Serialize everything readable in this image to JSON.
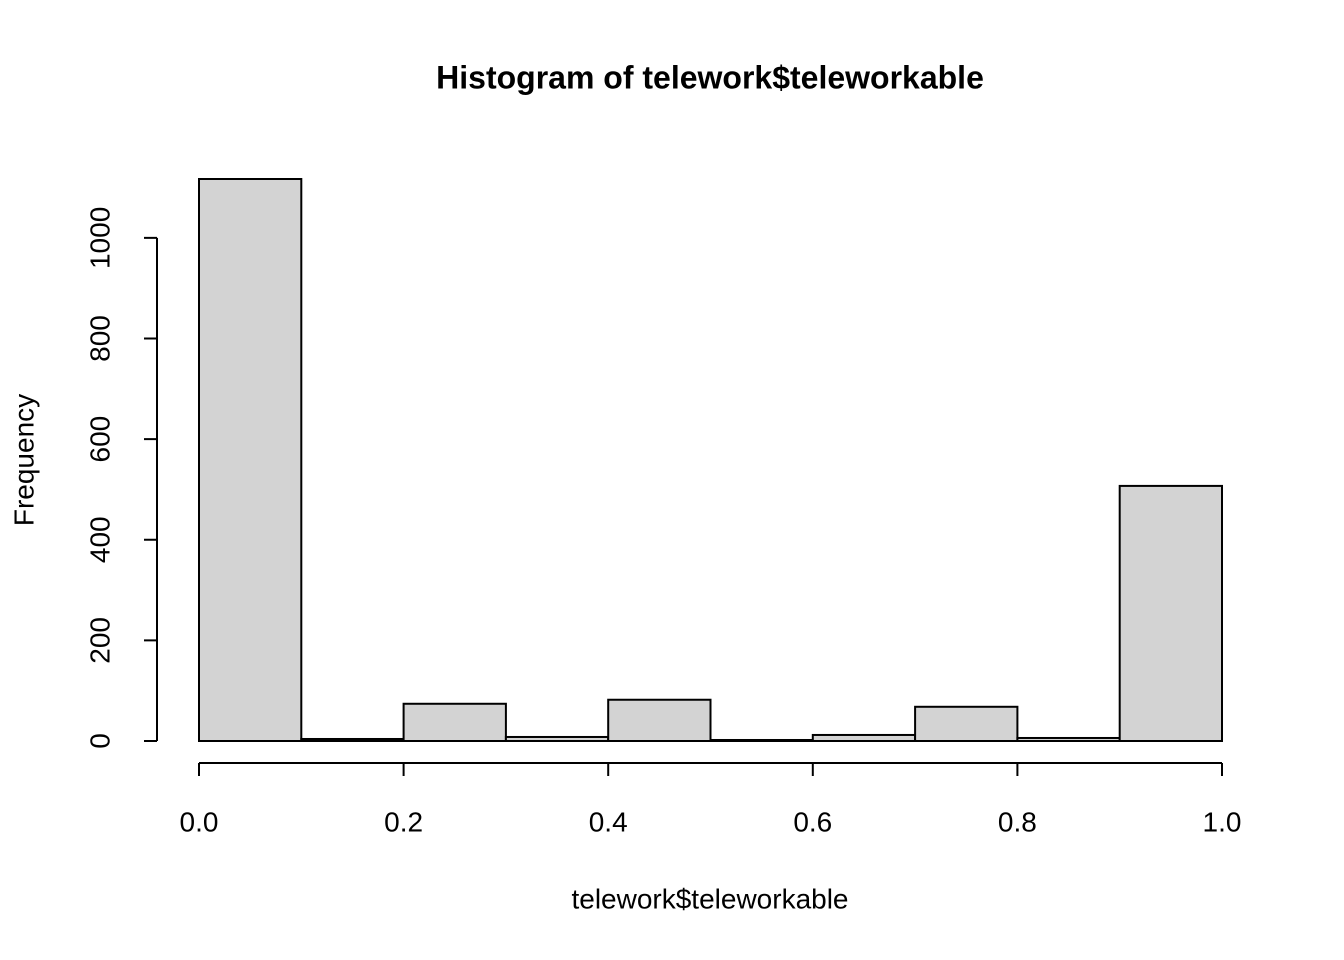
{
  "chart_data": {
    "type": "histogram",
    "title": "Histogram of telework$teleworkable",
    "x_label": "telework$teleworkable",
    "y_label": "Frequency",
    "bins": [
      0,
      0.1,
      0.2,
      0.3,
      0.4,
      0.5,
      0.6,
      0.7,
      0.8,
      0.9,
      1.0
    ],
    "values": [
      1117,
      4,
      74,
      8,
      82,
      2,
      12,
      68,
      6,
      507
    ],
    "color": "#d3d3d3",
    "xlim": [
      0,
      1
    ],
    "ylim": [
      0,
      1117
    ],
    "xticks": [
      {
        "value": 0,
        "label": "0.0"
      },
      0.2,
      0.4,
      0.6,
      0.8,
      {
        "value": 1,
        "label": "1.0"
      }
    ],
    "yticks": [
      0,
      200,
      400,
      600,
      800,
      1000
    ]
  }
}
